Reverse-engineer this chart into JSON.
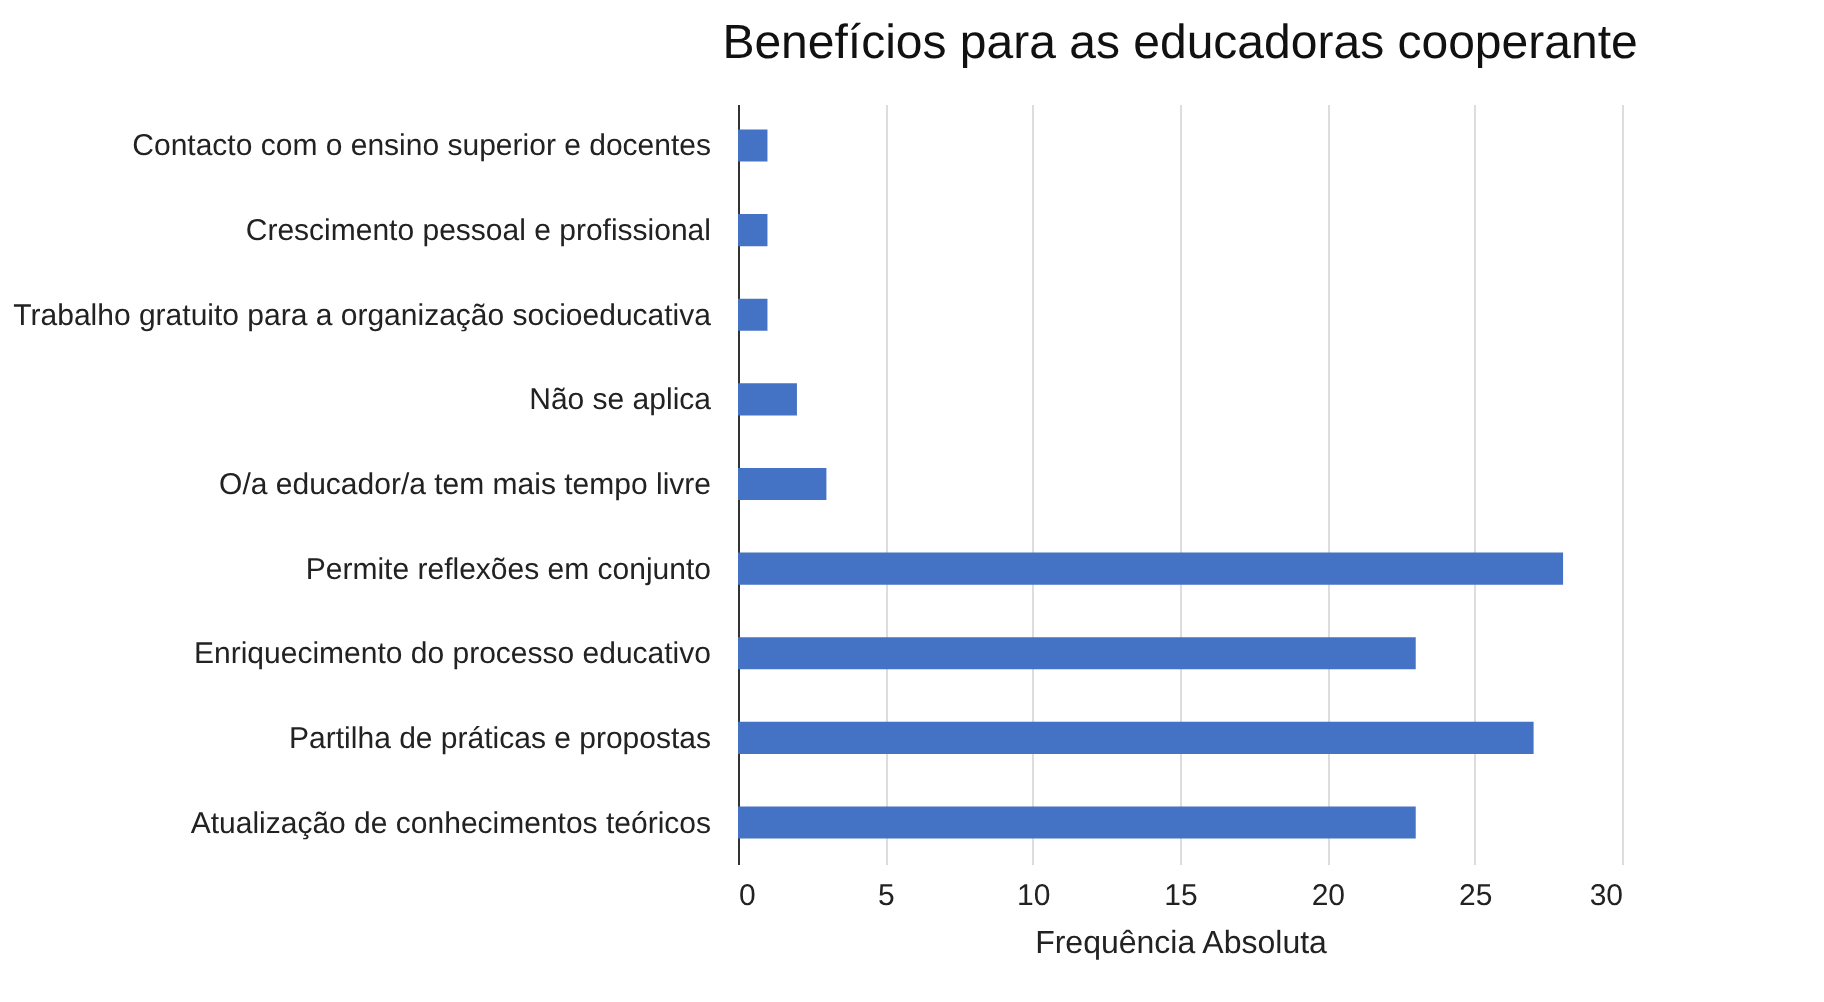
{
  "chart_data": {
    "type": "bar",
    "orientation": "horizontal",
    "title": "Benefícios para as educadoras cooperante",
    "xlabel": "Frequência Absoluta",
    "categories": [
      "Contacto com o ensino superior e docentes",
      "Crescimento pessoal e profissional",
      "Trabalho gratuito para a organização socioeducativa",
      "Não se aplica",
      "O/a educador/a tem mais tempo livre",
      "Permite reflexões em conjunto",
      "Enriquecimento do processo educativo",
      "Partilha de práticas e propostas",
      "Atualização de conhecimentos teóricos"
    ],
    "values": [
      1,
      1,
      1,
      2,
      3,
      28,
      23,
      27,
      23
    ],
    "color": "#4472c4",
    "xlim": [
      0,
      30
    ],
    "xticks": [
      0,
      5,
      10,
      15,
      20,
      25,
      30
    ],
    "grid": "x"
  }
}
